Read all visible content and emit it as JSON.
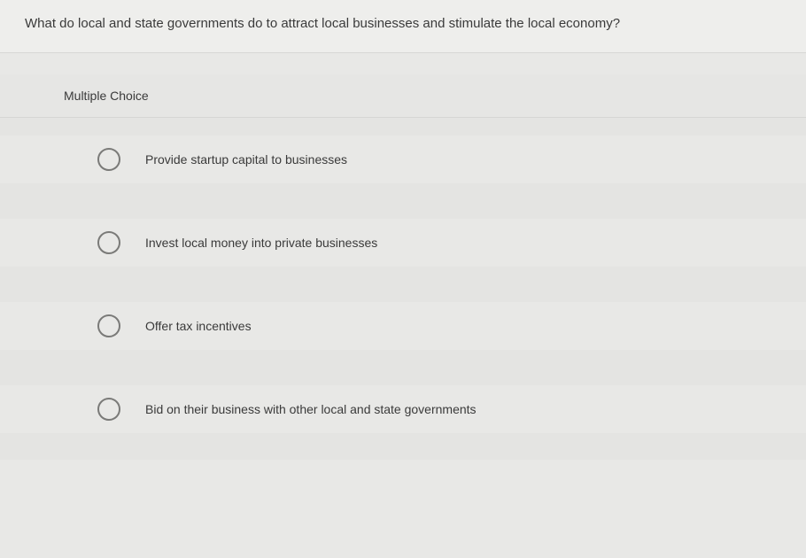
{
  "question": {
    "text": "What do local and state governments do to attract local businesses and stimulate the local economy?"
  },
  "section": {
    "label": "Multiple Choice"
  },
  "options": [
    {
      "label": "Provide startup capital to businesses"
    },
    {
      "label": "Invest local money into private businesses"
    },
    {
      "label": "Offer tax incentives"
    },
    {
      "label": "Bid on their business with other local and state governments"
    }
  ],
  "styling": {
    "background_color": "#e8e8e6",
    "text_color": "#3a3a3a",
    "radio_border_color": "#7a7a78",
    "font_family": "Arial",
    "question_fontsize": 15,
    "option_fontsize": 14,
    "radio_diameter": 26
  }
}
